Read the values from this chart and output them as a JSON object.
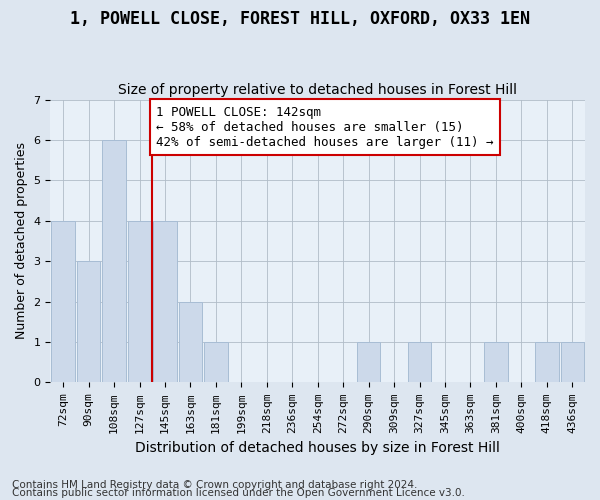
{
  "title": "1, POWELL CLOSE, FOREST HILL, OXFORD, OX33 1EN",
  "subtitle": "Size of property relative to detached houses in Forest Hill",
  "xlabel": "Distribution of detached houses by size in Forest Hill",
  "ylabel": "Number of detached properties",
  "categories": [
    "72sqm",
    "90sqm",
    "108sqm",
    "127sqm",
    "145sqm",
    "163sqm",
    "181sqm",
    "199sqm",
    "218sqm",
    "236sqm",
    "254sqm",
    "272sqm",
    "290sqm",
    "309sqm",
    "327sqm",
    "345sqm",
    "363sqm",
    "381sqm",
    "400sqm",
    "418sqm",
    "436sqm"
  ],
  "values": [
    4,
    3,
    6,
    4,
    4,
    2,
    1,
    0,
    0,
    0,
    0,
    0,
    1,
    0,
    1,
    0,
    0,
    1,
    0,
    1,
    1
  ],
  "bar_color": "#ccd9ea",
  "bar_edge_color": "#a8bdd4",
  "vline_x_index": 4,
  "vline_color": "#cc0000",
  "annotation_text": "1 POWELL CLOSE: 142sqm\n← 58% of detached houses are smaller (15)\n42% of semi-detached houses are larger (11) →",
  "annotation_box_facecolor": "#ffffff",
  "annotation_box_edgecolor": "#cc0000",
  "ylim": [
    0,
    7
  ],
  "yticks": [
    0,
    1,
    2,
    3,
    4,
    5,
    6,
    7
  ],
  "footer1": "Contains HM Land Registry data © Crown copyright and database right 2024.",
  "footer2": "Contains public sector information licensed under the Open Government Licence v3.0.",
  "fig_facecolor": "#dde6f0",
  "plot_facecolor": "#e8f0f8",
  "title_fontsize": 12,
  "subtitle_fontsize": 10,
  "xlabel_fontsize": 10,
  "ylabel_fontsize": 9,
  "tick_fontsize": 8,
  "footer_fontsize": 7.5,
  "annotation_fontsize": 9
}
